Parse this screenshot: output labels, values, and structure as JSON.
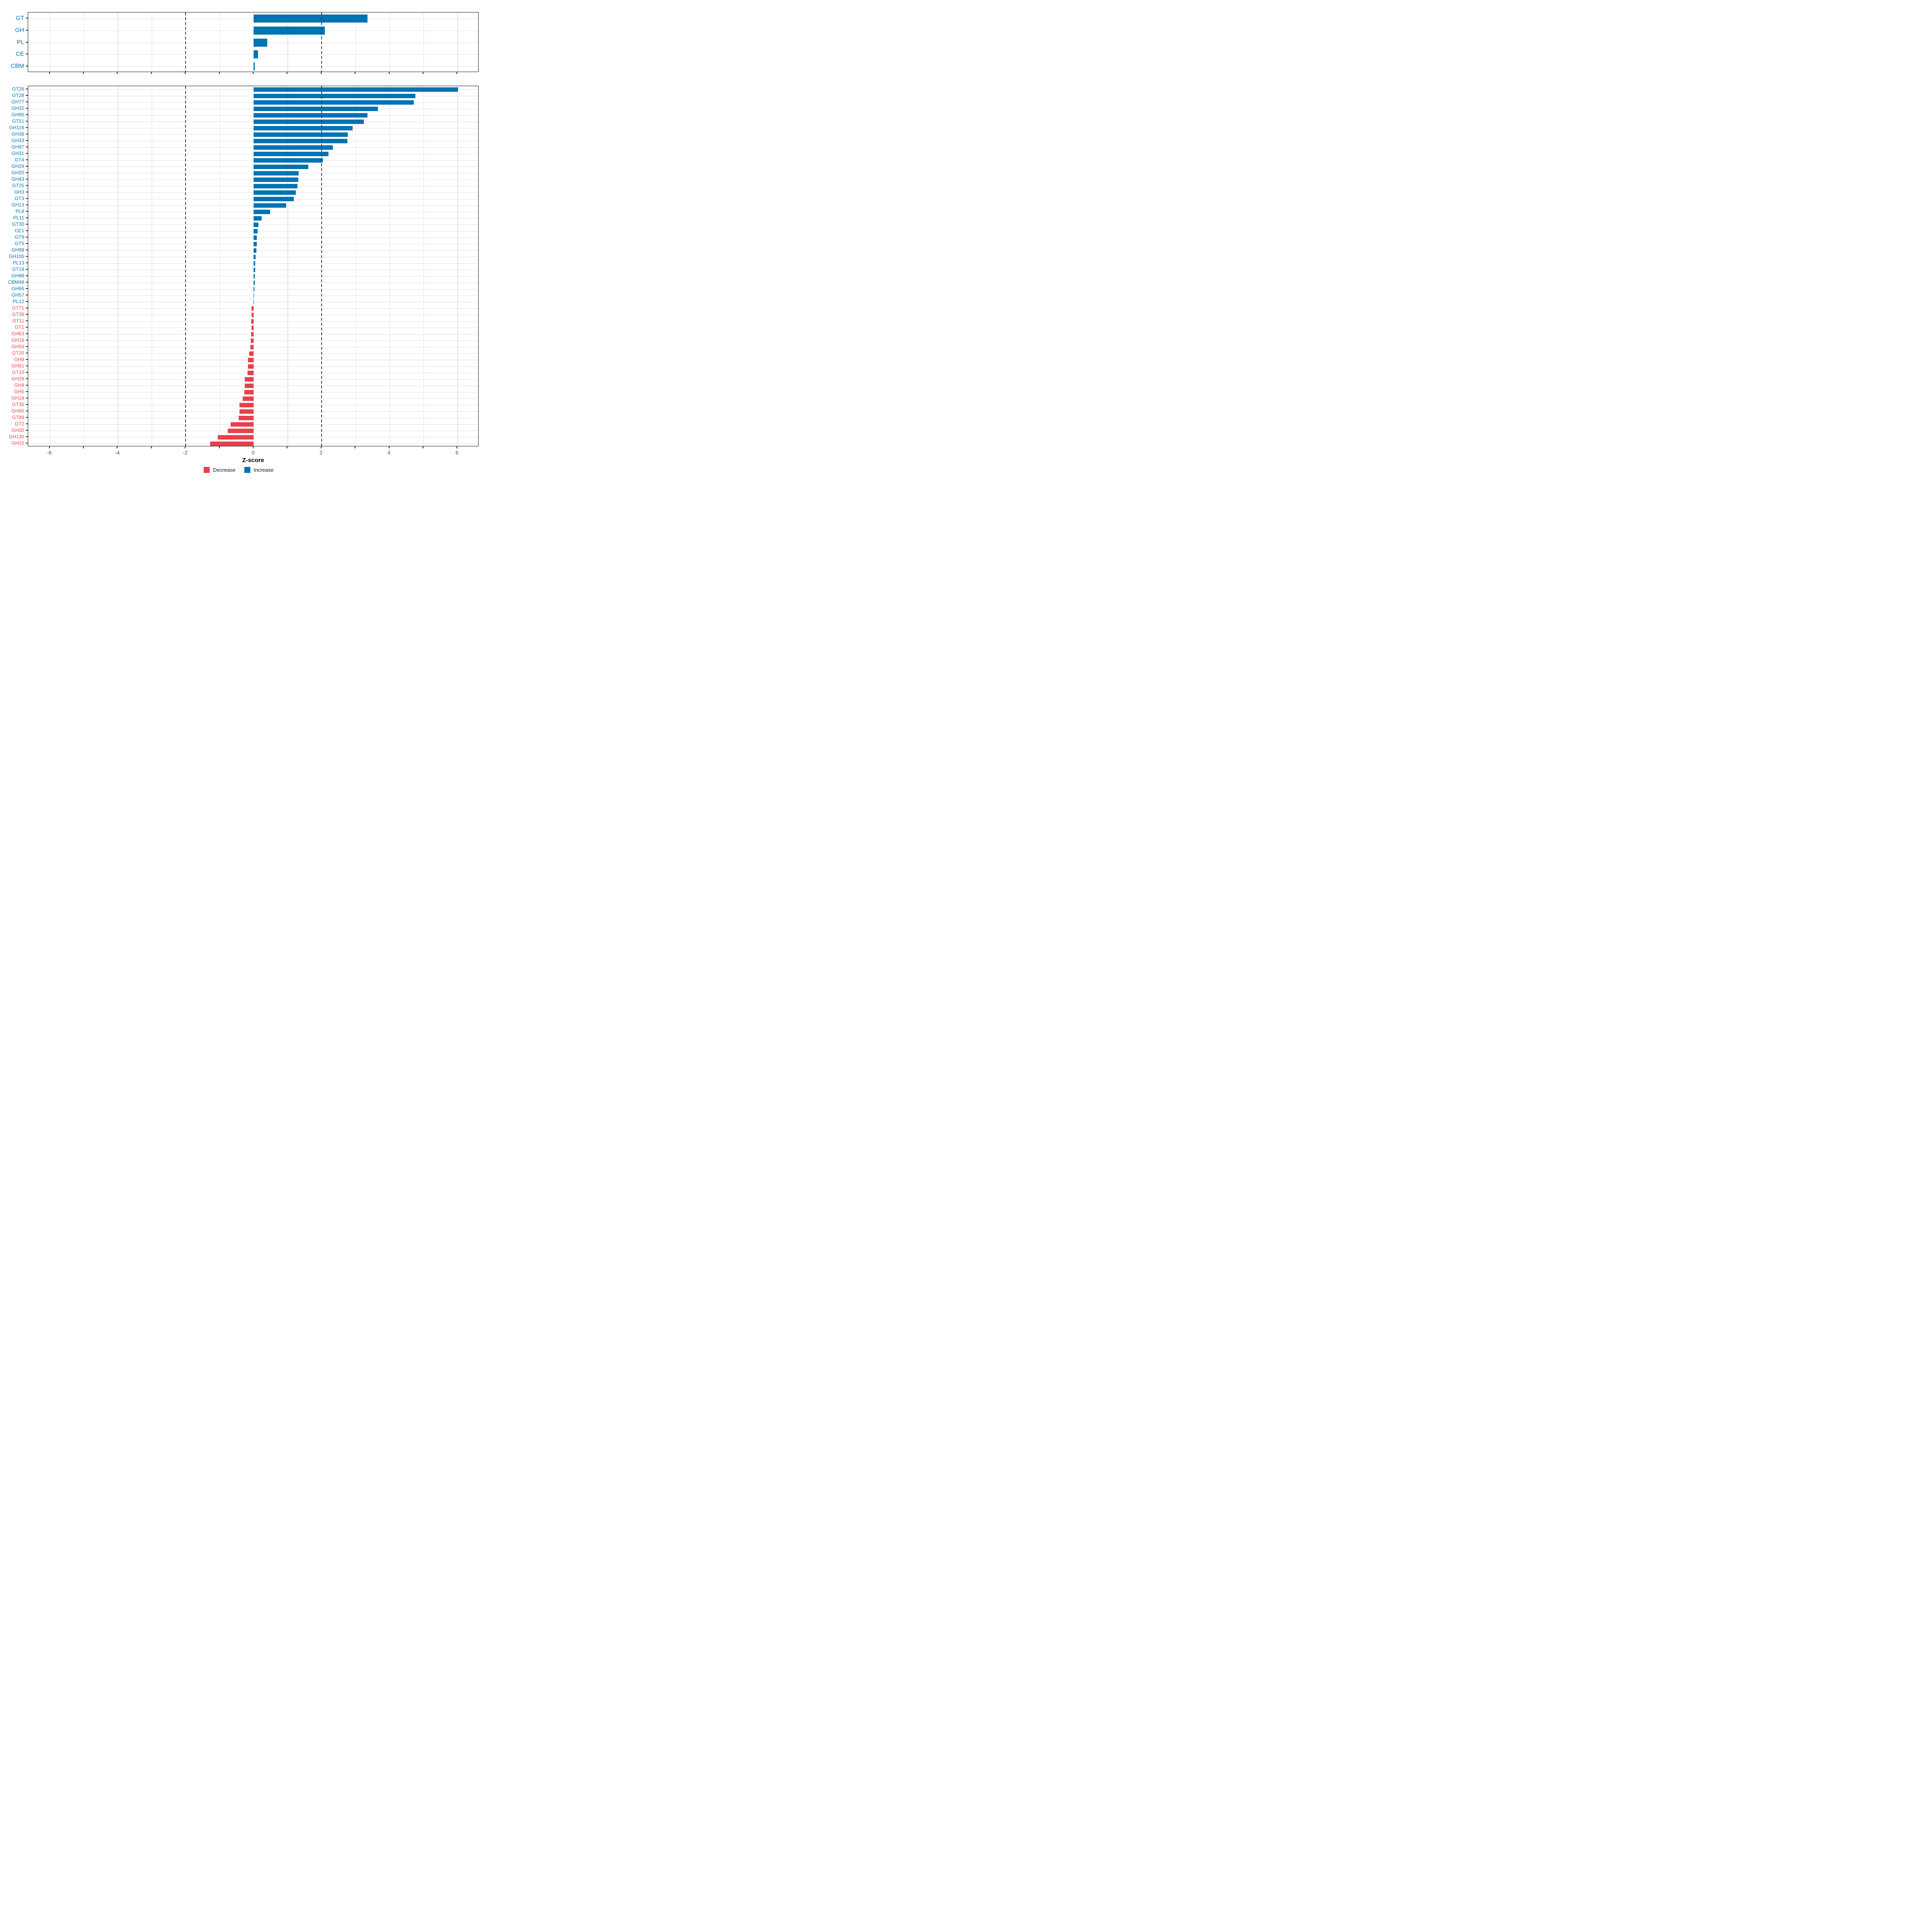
{
  "chart_data": {
    "type": "bar",
    "orientation": "horizontal",
    "title": "",
    "xlabel": "Z-score",
    "ylabel": "",
    "xlim": [
      -6.65,
      6.65
    ],
    "grid": "on",
    "x_major_tick_values": [
      -6,
      -4,
      -2,
      0,
      2,
      4,
      6
    ],
    "x_major_tick_labels": [
      "-6",
      "-4",
      "-2",
      "0",
      "2",
      "4",
      "6"
    ],
    "x_minor_tick_values": [
      -5,
      -3,
      -1,
      1,
      3,
      5
    ],
    "dashed_vlines": [
      -2,
      2
    ],
    "colors": {
      "increase": "#0073B2",
      "decrease": "#E8404D",
      "grid": "#E2E2E2",
      "dashed_line": "#404040",
      "panel_border": "#1A1A1A",
      "tick_label": "#4D4D4D",
      "axis_title": "#000000"
    },
    "panels": [
      {
        "id": "family-summary",
        "categories": [
          "GT",
          "GH",
          "PL",
          "CE",
          "CBM"
        ],
        "values": [
          3.35,
          2.1,
          0.4,
          0.13,
          0.03
        ]
      },
      {
        "id": "family-detail",
        "categories": [
          "GT26",
          "GT28",
          "GH77",
          "GH32",
          "GH95",
          "GT51",
          "GH116",
          "GH38",
          "GH33",
          "GH97",
          "GH31",
          "GT4",
          "GH29",
          "GH20",
          "GH43",
          "GT25",
          "GH3",
          "GT3",
          "GH13",
          "PL8",
          "PL11",
          "GT30",
          "CE1",
          "GT9",
          "GT5",
          "GH99",
          "GH105",
          "PL13",
          "GT19",
          "GH88",
          "CBM48",
          "GH66",
          "GH57",
          "PL12",
          "GT71",
          "GT36",
          "GT11",
          "GT1",
          "GH63",
          "GH16",
          "GH59",
          "GT20",
          "GH8",
          "GH51",
          "GT10",
          "GH26",
          "GH9",
          "GH5",
          "GH18",
          "GT35",
          "GH65",
          "GT89",
          "GT2",
          "GH30",
          "GH130",
          "GH15"
        ],
        "values": [
          6.02,
          4.76,
          4.71,
          3.66,
          3.35,
          3.25,
          2.92,
          2.77,
          2.76,
          2.34,
          2.2,
          2.04,
          1.61,
          1.33,
          1.32,
          1.29,
          1.24,
          1.19,
          0.96,
          0.49,
          0.24,
          0.14,
          0.12,
          0.1,
          0.09,
          0.08,
          0.06,
          0.05,
          0.05,
          0.04,
          0.03,
          0.02,
          0.015,
          0.008,
          -0.06,
          -0.06,
          -0.07,
          -0.06,
          -0.07,
          -0.08,
          -0.09,
          -0.13,
          -0.16,
          -0.17,
          -0.18,
          -0.26,
          -0.26,
          -0.27,
          -0.32,
          -0.41,
          -0.41,
          -0.44,
          -0.67,
          -0.76,
          -1.06,
          -1.28
        ]
      }
    ],
    "legend": {
      "position": "bottom",
      "entries": [
        {
          "label": "Decrease",
          "color": "#E8404D"
        },
        {
          "label": "Increase",
          "color": "#0073B2"
        }
      ]
    }
  }
}
